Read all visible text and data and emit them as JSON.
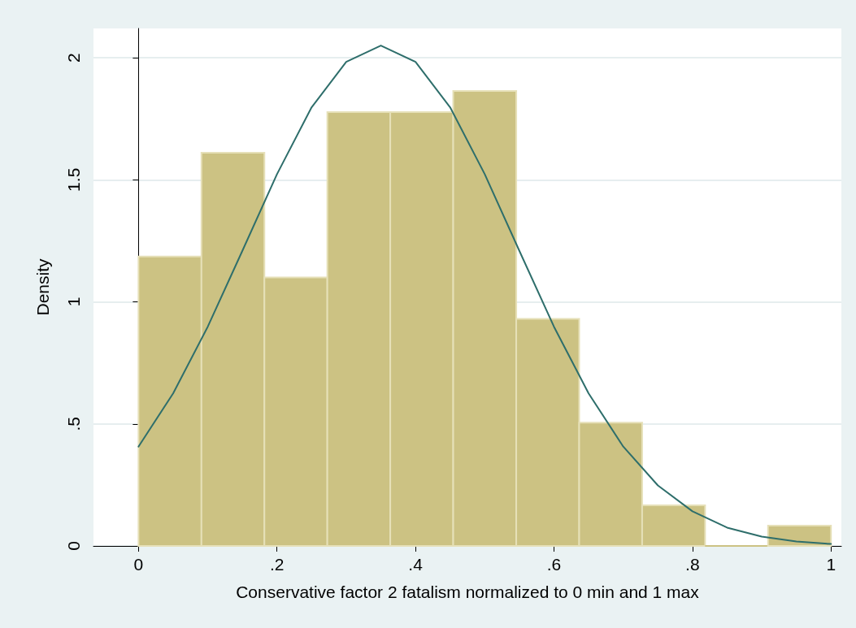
{
  "chart_data": {
    "type": "histogram",
    "xlabel": "Conservative factor 2 fatalism normalized to 0 min and 1 max",
    "ylabel": "Density",
    "bins": [
      0,
      0.0909,
      0.1818,
      0.2727,
      0.3636,
      0.4545,
      0.5455,
      0.6364,
      0.7273,
      0.8182,
      0.9091,
      1
    ],
    "values": [
      1.186,
      1.611,
      1.1,
      1.777,
      1.777,
      1.864,
      0.93,
      0.505,
      0.166,
      0,
      0.083
    ],
    "color": "#ccc283",
    "series": [
      {
        "type": "line",
        "color": "#2e6e6b",
        "x": [
          0,
          0.05,
          0.1,
          0.15,
          0.2,
          0.25,
          0.3,
          0.35,
          0.4,
          0.45,
          0.5,
          0.55,
          0.6,
          0.65,
          0.7,
          0.75,
          0.8,
          0.85,
          0.9,
          0.95,
          1
        ],
        "values": [
          0.407,
          0.625,
          0.898,
          1.209,
          1.523,
          1.797,
          1.983,
          2.05,
          1.983,
          1.797,
          1.523,
          1.209,
          0.898,
          0.625,
          0.407,
          0.248,
          0.142,
          0.075,
          0.038,
          0.018,
          0.008
        ]
      }
    ],
    "xlim": [
      -0.065,
      1.015
    ],
    "xticks": [
      0,
      {
        "value": 0.2,
        "label": ".2"
      },
      {
        "value": 0.4,
        "label": ".4"
      },
      {
        "value": 0.6,
        "label": ".6"
      },
      {
        "value": 0.8,
        "label": ".8"
      },
      1
    ],
    "ylim": [
      0,
      2.12
    ],
    "yticks": [
      0,
      {
        "value": 0.5,
        "label": ".5"
      },
      1,
      {
        "value": 1.5,
        "label": "1.5"
      },
      2
    ],
    "grid": "y",
    "marker": "none",
    "line_style": "solid"
  }
}
